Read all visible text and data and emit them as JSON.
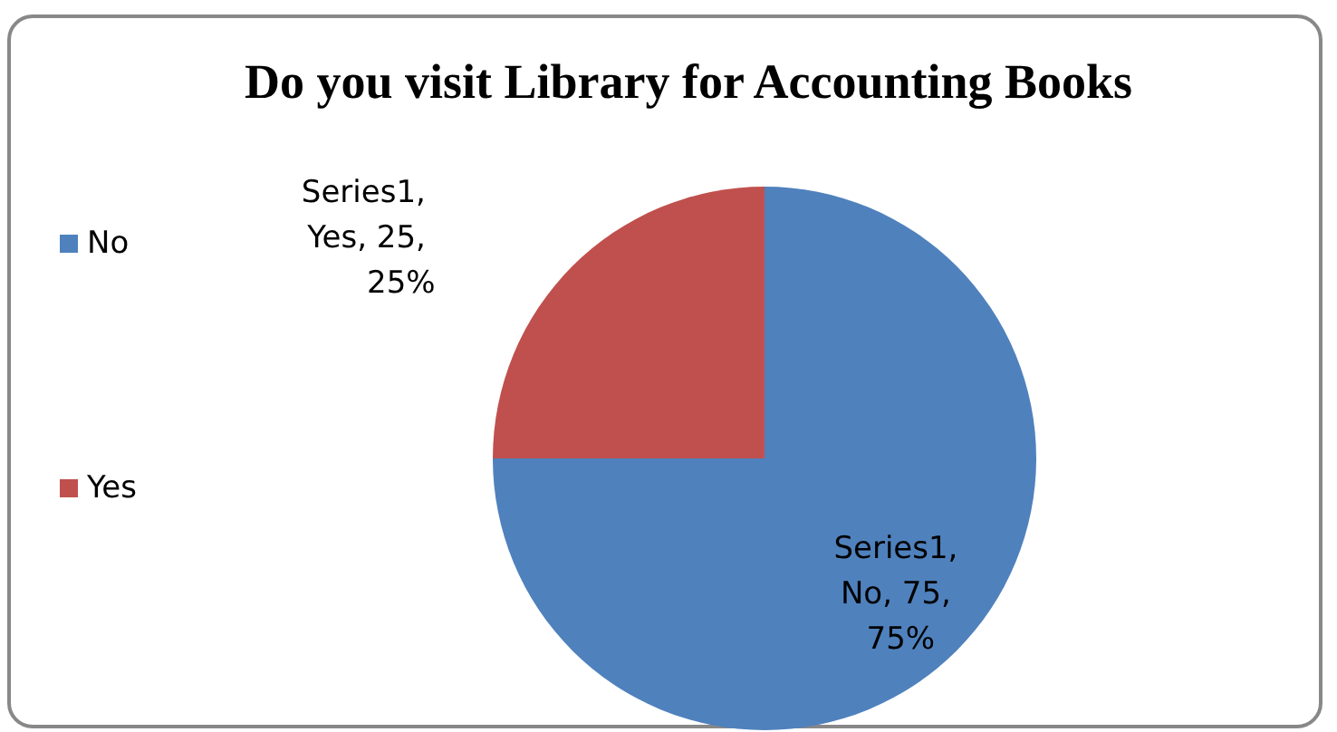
{
  "chart_data": {
    "type": "pie",
    "title": "Do you visit Library for Accounting Books",
    "series": [
      {
        "values": [
          75,
          25
        ]
      }
    ],
    "categories": [
      "No",
      "Yes"
    ],
    "colors": [
      "#4f81bd",
      "#c0504d"
    ],
    "value_labels": [
      "Series1, No, 75, 75%",
      "Series1, Yes, 25, 25%"
    ],
    "legend": "left"
  }
}
